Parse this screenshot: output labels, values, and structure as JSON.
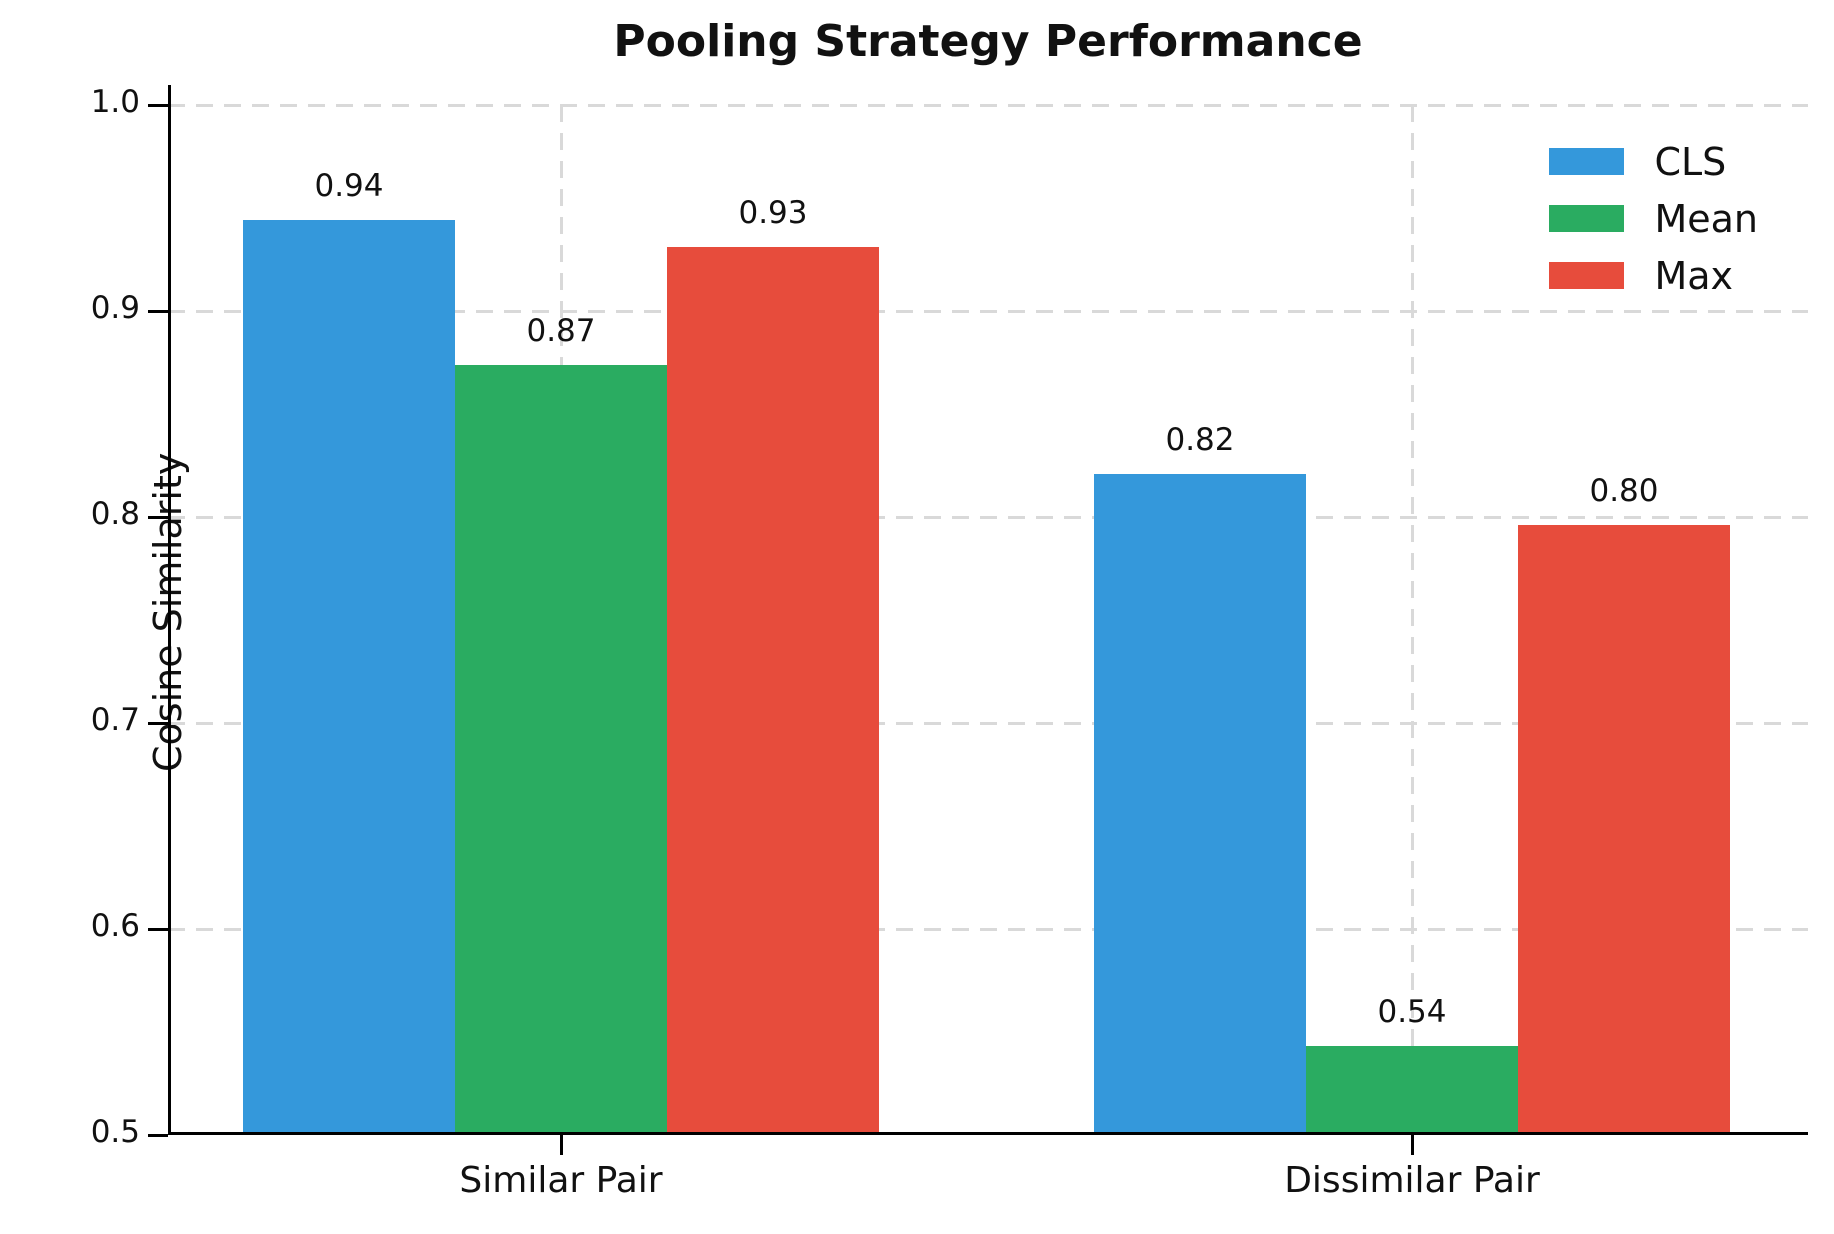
{
  "chart_data": {
    "type": "bar",
    "title": "Pooling Strategy Performance",
    "ylabel": "Cosine Similarity",
    "xlabel": "",
    "categories": [
      "Similar Pair",
      "Dissimilar Pair"
    ],
    "series": [
      {
        "name": "CLS",
        "color": "#3498db",
        "values": [
          0.944,
          0.821
        ],
        "labels": [
          "0.94",
          "0.82"
        ]
      },
      {
        "name": "Mean",
        "color": "#2aac61",
        "values": [
          0.874,
          0.543
        ],
        "labels": [
          "0.87",
          "0.54"
        ]
      },
      {
        "name": "Max",
        "color": "#e74c3c",
        "values": [
          0.931,
          0.796
        ],
        "labels": [
          "0.93",
          "0.80"
        ]
      }
    ],
    "ylim": [
      0.5,
      1.0
    ],
    "yticks": [
      "0.5",
      "0.6",
      "0.7",
      "0.8",
      "0.9",
      "1.0"
    ],
    "grid": "dashed",
    "grid_color": "#d9d9d9",
    "legend_position": "upper right",
    "text_color": "#111111",
    "background_color": "#ffffff"
  }
}
